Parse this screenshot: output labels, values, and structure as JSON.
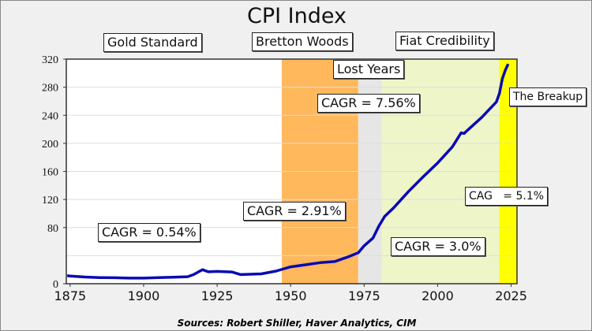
{
  "chart_data": {
    "type": "line",
    "title": "CPI Index",
    "xlabel": "",
    "ylabel": "",
    "xlim": [
      1873.7,
      2027
    ],
    "ylim": [
      0,
      320
    ],
    "grid": true,
    "x_ticks": [
      1875,
      1900,
      1925,
      1950,
      1975,
      2000,
      2025
    ],
    "y_ticks": [
      0,
      80,
      120,
      160,
      200,
      240,
      280,
      320
    ],
    "gridlines": [
      40,
      80,
      120,
      160,
      200,
      240,
      280
    ],
    "series": [
      {
        "name": "CPI",
        "color": "#0a0ab4",
        "x": [
          1874,
          1875,
          1880,
          1885,
          1890,
          1895,
          1900,
          1905,
          1910,
          1915,
          1917,
          1920,
          1922,
          1925,
          1930,
          1933,
          1940,
          1945,
          1950,
          1955,
          1960,
          1965,
          1970,
          1973,
          1975,
          1978,
          1980,
          1982,
          1985,
          1990,
          1995,
          2000,
          2005,
          2008,
          2009,
          2010,
          2015,
          2020,
          2021,
          2022,
          2023,
          2024
        ],
        "values": [
          11.5,
          11,
          9.5,
          8.8,
          8.5,
          8,
          8,
          8.6,
          9.3,
          10,
          13,
          20,
          17,
          17.5,
          16.7,
          13,
          14,
          18,
          24,
          27,
          30,
          31.5,
          39,
          44,
          54,
          65,
          82,
          96,
          108,
          131,
          152,
          172,
          195,
          215,
          214,
          218,
          237,
          259,
          271,
          292,
          304,
          313
        ]
      }
    ],
    "regions": [
      {
        "name": "Gold Standard",
        "from": 1873.7,
        "to": 1947,
        "color": "#ffffff"
      },
      {
        "name": "Bretton Woods",
        "from": 1947,
        "to": 1973,
        "color": "#ffb85c"
      },
      {
        "name": "Lost Years",
        "from": 1973,
        "to": 1981,
        "color": "#e6e6e6"
      },
      {
        "name": "Fiat Credibility",
        "from": 1981,
        "to": 2021,
        "color": "#eef5c8"
      },
      {
        "name": "The Breakup",
        "from": 2021,
        "to": 2027,
        "color": "#ffff00"
      }
    ],
    "annotations": {
      "gold": "Gold Standard",
      "bretton": "Bretton Woods",
      "fiat": "Fiat Credibility",
      "lost": "Lost Years",
      "breakup": "The Breakup",
      "cagr_gold": "CAGR = 0.54%",
      "cagr_bretton": "CAGR = 2.91%",
      "cagr_lost": "CAGR = 7.56%",
      "cagr_fiat": "CAGR = 3.0%",
      "cagr_breakup": "CAG   = 5.1%"
    },
    "source": "Sources:  Robert Shiller,  Haver Analytics, CIM"
  }
}
